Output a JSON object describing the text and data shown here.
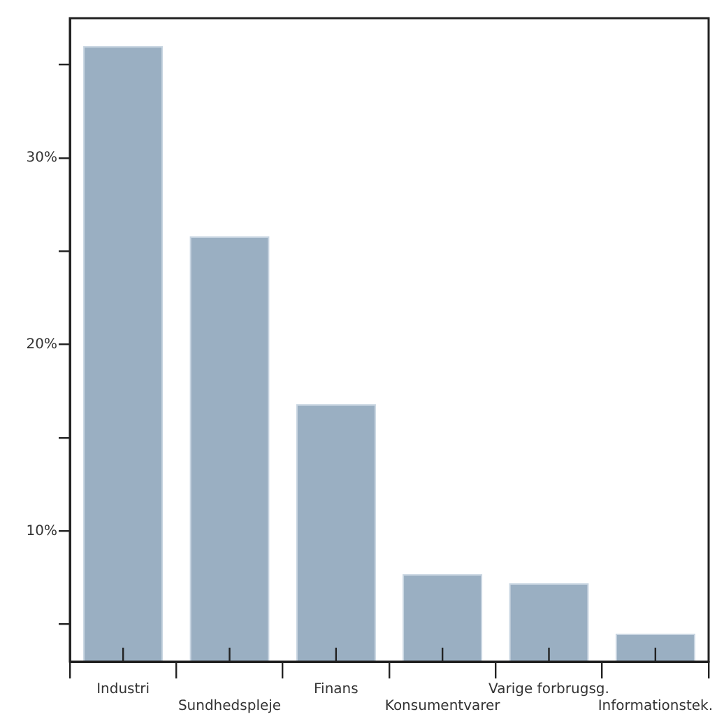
{
  "chart_data": {
    "type": "bar",
    "categories": [
      "Industri",
      "Sundhedspleje",
      "Finans",
      "Konsumentvarer",
      "Varige forbrugsg.",
      "Informationstek."
    ],
    "values": [
      36.0,
      25.8,
      16.8,
      7.7,
      7.2,
      4.5
    ],
    "color": "#9aafc2",
    "ylim": [
      3,
      37.5
    ],
    "yticks": [
      {
        "value": 5,
        "label": null
      },
      {
        "value": 10,
        "label": "10%"
      },
      {
        "value": 15,
        "label": null
      },
      {
        "value": 20,
        "label": "20%"
      },
      {
        "value": 25,
        "label": null
      },
      {
        "value": 30,
        "label": "30%"
      },
      {
        "value": 35,
        "label": null
      }
    ],
    "grid": false,
    "legend": false
  }
}
